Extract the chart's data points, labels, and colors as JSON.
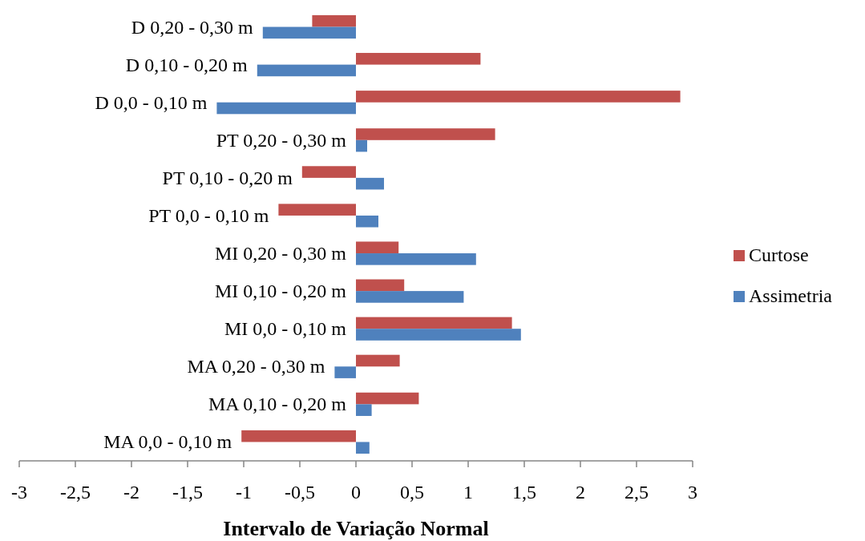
{
  "chart_data": {
    "type": "bar",
    "orientation": "horizontal",
    "xlabel": "Intervalo de Variação Normal",
    "categories": [
      "D 0,20 - 0,30 m",
      "D 0,10 - 0,20 m",
      "D 0,0 - 0,10 m",
      "PT 0,20 - 0,30 m",
      "PT 0,10 - 0,20 m",
      "PT 0,0 - 0,10 m",
      "MI 0,20 - 0,30 m",
      "MI 0,10 - 0,20 m",
      "MI 0,0 - 0,10 m",
      "MA 0,20 - 0,30 m",
      "MA 0,10 - 0,20 m",
      "MA 0,0 - 0,10 m"
    ],
    "series": [
      {
        "name": "Curtose",
        "color": "#c0504d",
        "values": [
          -0.39,
          1.11,
          2.89,
          1.24,
          -0.48,
          -0.69,
          0.38,
          0.43,
          1.39,
          0.39,
          0.56,
          -1.02
        ]
      },
      {
        "name": "Assimetria",
        "color": "#4f81bd",
        "values": [
          -0.83,
          -0.88,
          -1.24,
          0.1,
          0.25,
          0.2,
          1.07,
          0.96,
          1.47,
          -0.19,
          0.14,
          0.12
        ]
      }
    ],
    "xlim": [
      -3,
      3
    ],
    "xticks": [
      -3,
      {
        "value": -2.5,
        "label": "-2,5"
      },
      -2,
      {
        "value": -1.5,
        "label": "-1,5"
      },
      -1,
      {
        "value": -0.5,
        "label": "-0,5"
      },
      0,
      {
        "value": 0.5,
        "label": "0,5"
      },
      1,
      {
        "value": 1.5,
        "label": "1,5"
      },
      2,
      {
        "value": 2.5,
        "label": "2,5"
      },
      3
    ],
    "grid": false,
    "legend": "right"
  }
}
